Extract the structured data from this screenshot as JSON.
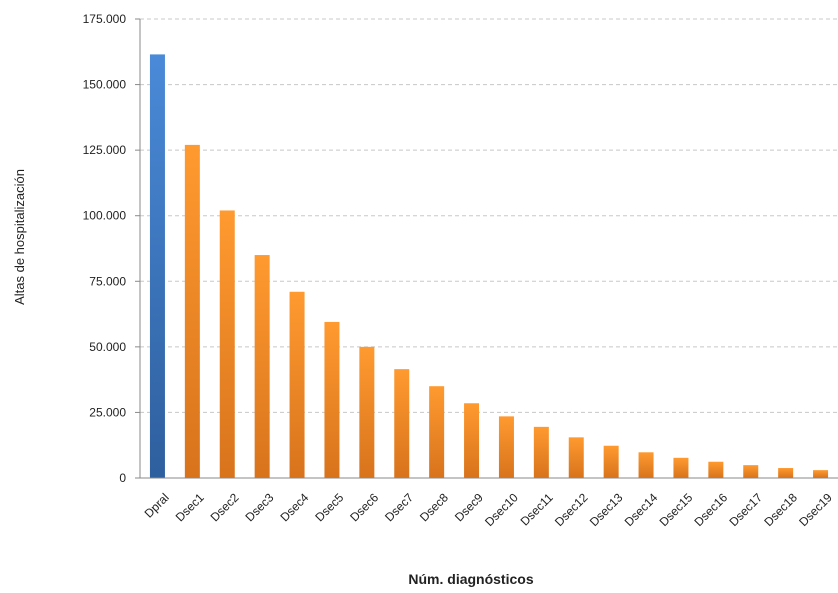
{
  "chart_data": {
    "type": "bar",
    "title": "",
    "xlabel": "Núm. diagnósticos",
    "ylabel": "Altas de hospitalización",
    "ylim": [
      0,
      175000
    ],
    "yticks": [
      0,
      25000,
      50000,
      75000,
      100000,
      125000,
      150000,
      175000
    ],
    "ytick_labels": [
      "0",
      "25.000",
      "50.000",
      "75.000",
      "100.000",
      "125.000",
      "150.000",
      "175.000"
    ],
    "grid": true,
    "legend": "none",
    "categories": [
      "Dpral",
      "Dsec1",
      "Dsec2",
      "Dsec3",
      "Dsec4",
      "Dsec5",
      "Dsec6",
      "Dsec7",
      "Dsec8",
      "Dsec9",
      "Dsec10",
      "Dsec11",
      "Dsec12",
      "Dsec13",
      "Dsec14",
      "Dsec15",
      "Dsec16",
      "Dsec17",
      "Dsec18",
      "Dsec19"
    ],
    "values": [
      161500,
      127000,
      102000,
      85000,
      71000,
      59500,
      50000,
      41500,
      35000,
      28500,
      23500,
      19500,
      15500,
      12300,
      9800,
      7700,
      6200,
      4900,
      3800,
      3000
    ],
    "colors": {
      "primary": "#3d78c6",
      "secondary": "#f08a2b",
      "grid": "#c8c8c8",
      "axis": "#8a8a8a"
    }
  }
}
